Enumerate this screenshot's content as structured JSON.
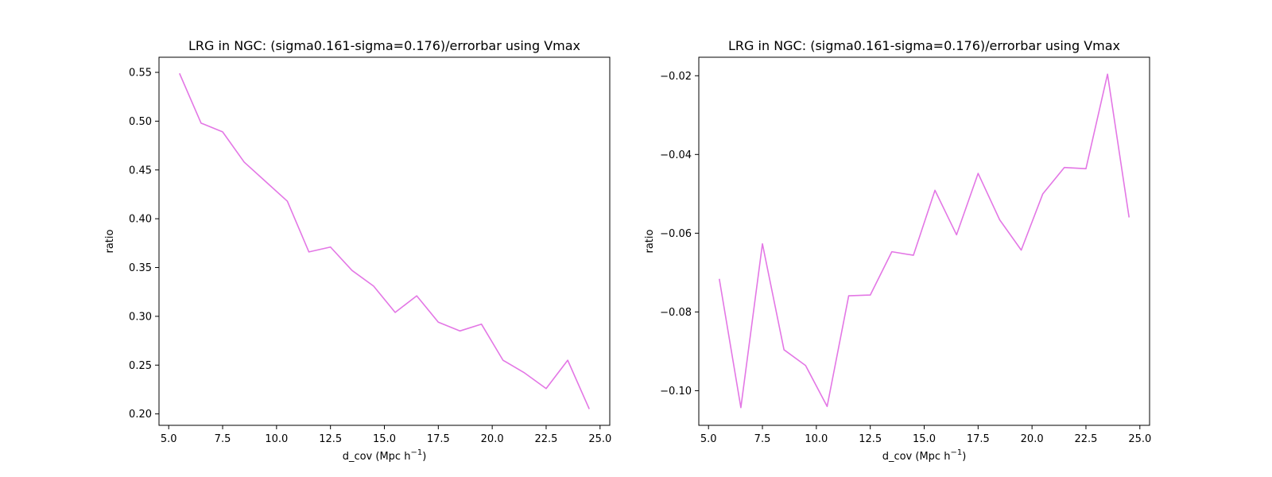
{
  "chart_data": [
    {
      "type": "line",
      "title": "LRG in NGC: (sigma0.161-sigma=0.176)/errorbar using Vmax",
      "xlabel": "d_cov (Mpc h",
      "xlabel_sup": "−1",
      "xlabel_suffix": ")",
      "ylabel": "ratio",
      "xlim": [
        4.55,
        25.45
      ],
      "ylim": [
        0.1883,
        0.5655
      ],
      "xticks": [
        5.0,
        7.5,
        10.0,
        12.5,
        15.0,
        17.5,
        20.0,
        22.5,
        25.0
      ],
      "xtick_labels": [
        "5.0",
        "7.5",
        "10.0",
        "12.5",
        "15.0",
        "17.5",
        "20.0",
        "22.5",
        "25.0"
      ],
      "yticks": [
        0.2,
        0.25,
        0.3,
        0.35,
        0.4,
        0.45,
        0.5,
        0.55
      ],
      "ytick_labels": [
        "0.20",
        "0.25",
        "0.30",
        "0.35",
        "0.40",
        "0.45",
        "0.50",
        "0.55"
      ],
      "series": [
        {
          "color": "#e377e5",
          "x": [
            5.5,
            6.5,
            7.5,
            8.5,
            9.5,
            10.5,
            11.5,
            12.5,
            13.5,
            14.5,
            15.5,
            16.5,
            17.5,
            18.5,
            19.5,
            20.5,
            21.5,
            22.5,
            23.5,
            24.5
          ],
          "y": [
            0.549,
            0.498,
            0.489,
            0.458,
            0.438,
            0.418,
            0.366,
            0.371,
            0.347,
            0.331,
            0.304,
            0.321,
            0.294,
            0.285,
            0.292,
            0.255,
            0.242,
            0.226,
            0.255,
            0.205
          ]
        }
      ]
    },
    {
      "type": "line",
      "title": "LRG in NGC: (sigma0.161-sigma=0.176)/errorbar using Vmax",
      "xlabel": "d_cov (Mpc h",
      "xlabel_sup": "−1",
      "xlabel_suffix": ")",
      "ylabel": "ratio",
      "xlim": [
        4.55,
        25.45
      ],
      "ylim": [
        -0.1088,
        -0.0153
      ],
      "xticks": [
        5.0,
        7.5,
        10.0,
        12.5,
        15.0,
        17.5,
        20.0,
        22.5,
        25.0
      ],
      "xtick_labels": [
        "5.0",
        "7.5",
        "10.0",
        "12.5",
        "15.0",
        "17.5",
        "20.0",
        "22.5",
        "25.0"
      ],
      "yticks": [
        -0.1,
        -0.08,
        -0.06,
        -0.04,
        -0.02
      ],
      "ytick_labels": [
        "−0.10",
        "−0.08",
        "−0.06",
        "−0.04",
        "−0.02"
      ],
      "series": [
        {
          "color": "#e377e5",
          "x": [
            5.5,
            6.5,
            7.5,
            8.5,
            9.5,
            10.5,
            11.5,
            12.5,
            13.5,
            14.5,
            15.5,
            16.5,
            17.5,
            18.5,
            19.5,
            20.5,
            21.5,
            22.5,
            23.5,
            24.5
          ],
          "y": [
            -0.0716,
            -0.1043,
            -0.0627,
            -0.0896,
            -0.0936,
            -0.104,
            -0.0759,
            -0.0757,
            -0.0647,
            -0.0656,
            -0.0491,
            -0.0604,
            -0.0448,
            -0.0566,
            -0.0643,
            -0.05,
            -0.0433,
            -0.0436,
            -0.0196,
            -0.056
          ]
        }
      ]
    }
  ]
}
